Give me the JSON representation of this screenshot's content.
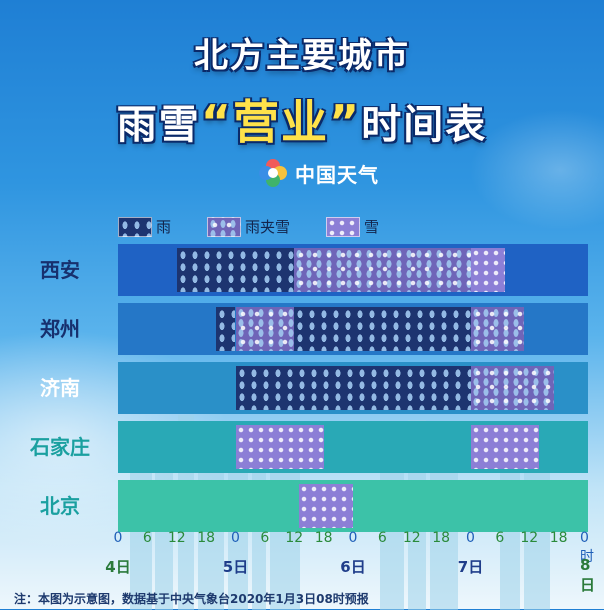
{
  "title": {
    "line1": "北方主要城市",
    "line2_pre": "雨雪",
    "line2_highlight": "“营业”",
    "line2_post": "时间表"
  },
  "logo": {
    "text": "中国天气"
  },
  "colors": {
    "rain": "#1d3470",
    "mixed": "#6f65b8",
    "snow": "#8c7fd6",
    "day_label": "#2a7a3a",
    "note": "#1e3a6e"
  },
  "chart_data": {
    "type": "timeline",
    "title": "北方主要城市雨雪“营业”时间表",
    "legend": [
      "雨",
      "雨夹雪",
      "雪"
    ],
    "categories": [
      "雨",
      "雨夹雪",
      "雪"
    ],
    "time_ticks": [
      "0",
      "6",
      "12",
      "18",
      "0",
      "6",
      "12",
      "18",
      "0",
      "6",
      "12",
      "18",
      "0",
      "6",
      "12",
      "18",
      "0时"
    ],
    "day_labels": [
      {
        "label": "4日",
        "hour": 0
      },
      {
        "label": "5日",
        "hour": 24
      },
      {
        "label": "6日",
        "hour": 48
      },
      {
        "label": "7日",
        "hour": 72
      },
      {
        "label": "8日",
        "hour": 96
      }
    ],
    "x_range_hours": [
      0,
      96
    ],
    "rows": [
      {
        "city": "西安",
        "label_color": "#17306e",
        "band_color": "#1f62c4",
        "segments": [
          {
            "type": "雨",
            "start": 12,
            "end": 36
          },
          {
            "type": "雨夹雪",
            "start": 36,
            "end": 72
          },
          {
            "type": "雪",
            "start": 72,
            "end": 79
          }
        ]
      },
      {
        "city": "郑州",
        "label_color": "#17306e",
        "band_color": "#2577c7",
        "segments": [
          {
            "type": "雨",
            "start": 20,
            "end": 24
          },
          {
            "type": "雨夹雪",
            "start": 24,
            "end": 36
          },
          {
            "type": "雨",
            "start": 36,
            "end": 72
          },
          {
            "type": "雨夹雪",
            "start": 72,
            "end": 83
          }
        ]
      },
      {
        "city": "济南",
        "label_color": "#ffffff",
        "band_color": "#2a90c8",
        "segments": [
          {
            "type": "雨",
            "start": 24,
            "end": 72
          },
          {
            "type": "雨夹雪",
            "start": 72,
            "end": 89
          }
        ]
      },
      {
        "city": "石家庄",
        "label_color": "#1aa0a0",
        "band_color": "#29a9b6",
        "segments": [
          {
            "type": "雪",
            "start": 24,
            "end": 42
          },
          {
            "type": "雪",
            "start": 72,
            "end": 86
          }
        ]
      },
      {
        "city": "北京",
        "label_color": "#1aa0a0",
        "band_color": "#3cc2a8",
        "segments": [
          {
            "type": "雪",
            "start": 37,
            "end": 48
          }
        ]
      }
    ]
  },
  "note": "注：本图为示意图，数据基于中央气象台2020年1月3日08时预报"
}
